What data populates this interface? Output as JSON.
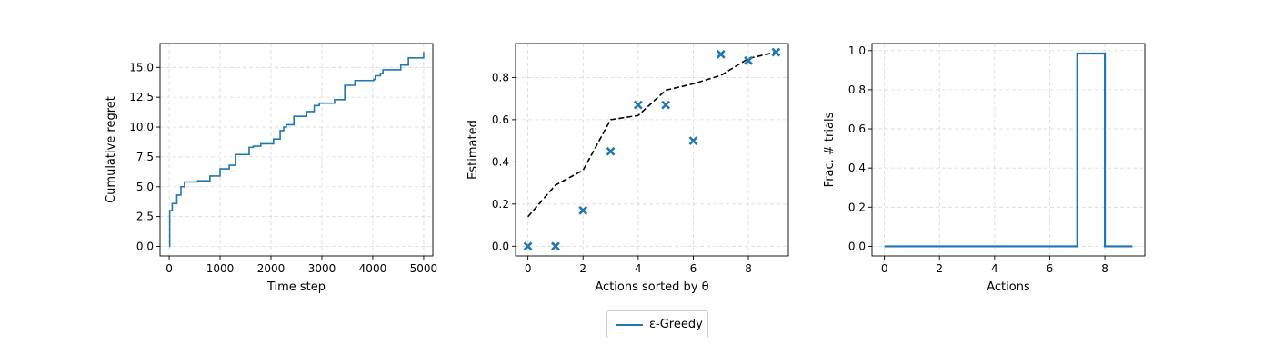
{
  "chart_data": [
    {
      "type": "line",
      "title": "",
      "xlabel": "Time step",
      "ylabel": "Cumulative regret",
      "xlim": [
        -180,
        5180
      ],
      "ylim": [
        -0.8,
        17
      ],
      "xticks": [
        0,
        1000,
        2000,
        3000,
        4000,
        5000
      ],
      "yticks": [
        0.0,
        2.5,
        5.0,
        7.5,
        10.0,
        12.5,
        15.0
      ],
      "xtick_labels": [
        "0",
        "1000",
        "2000",
        "3000",
        "4000",
        "5000"
      ],
      "ytick_labels": [
        "0.0",
        "2.5",
        "5.0",
        "7.5",
        "10.0",
        "12.5",
        "15.0"
      ],
      "grid": true,
      "series": [
        {
          "name": "ε-Greedy",
          "color": "#1f77b4",
          "step": true,
          "x": [
            0,
            10,
            60,
            150,
            230,
            300,
            560,
            800,
            1000,
            1180,
            1300,
            1340,
            1570,
            1650,
            1800,
            2050,
            2180,
            2250,
            2300,
            2450,
            2700,
            2850,
            2950,
            3100,
            3250,
            3450,
            3550,
            3650,
            3800,
            4020,
            4050,
            4150,
            4200,
            4500,
            4550,
            4700,
            4800,
            4950,
            5000
          ],
          "y": [
            0.0,
            3.0,
            3.6,
            4.3,
            5.0,
            5.4,
            5.5,
            5.9,
            6.5,
            6.8,
            7.7,
            7.7,
            8.3,
            8.4,
            8.6,
            9.0,
            9.7,
            10.0,
            10.2,
            10.9,
            11.3,
            11.8,
            12.0,
            12.0,
            12.3,
            13.5,
            13.5,
            13.9,
            13.9,
            14.0,
            14.3,
            14.5,
            14.8,
            14.8,
            15.2,
            15.8,
            15.8,
            15.8,
            16.3
          ]
        }
      ]
    },
    {
      "type": "scatter",
      "title": "",
      "xlabel": "Actions sorted by θ",
      "ylabel": "Estimated",
      "xlim": [
        -0.45,
        9.45
      ],
      "ylim": [
        -0.046,
        0.961
      ],
      "xticks": [
        0,
        2,
        4,
        6,
        8
      ],
      "yticks": [
        0.0,
        0.2,
        0.4,
        0.6,
        0.8
      ],
      "xtick_labels": [
        "0",
        "2",
        "4",
        "6",
        "8"
      ],
      "ytick_labels": [
        "0.0",
        "0.2",
        "0.4",
        "0.6",
        "0.8"
      ],
      "grid": true,
      "series": [
        {
          "name": "",
          "kind": "line",
          "style": "dashed",
          "color": "#000000",
          "x": [
            0,
            1,
            2,
            3,
            4,
            5,
            6,
            7,
            8,
            9
          ],
          "y": [
            0.14,
            0.29,
            0.36,
            0.6,
            0.62,
            0.74,
            0.77,
            0.81,
            0.89,
            0.92
          ]
        },
        {
          "name": "",
          "kind": "scatter",
          "marker": "x",
          "color": "#1f77b4",
          "x": [
            0,
            1,
            2,
            3,
            4,
            5,
            6,
            7,
            8,
            9
          ],
          "y": [
            0.0,
            0.0,
            0.17,
            0.45,
            0.67,
            0.67,
            0.5,
            0.91,
            0.88,
            0.92
          ]
        }
      ]
    },
    {
      "type": "line",
      "title": "",
      "xlabel": "Actions",
      "ylabel": "Frac. # trials",
      "xlim": [
        -0.45,
        9.45
      ],
      "ylim": [
        -0.049,
        1.036
      ],
      "xticks": [
        0,
        2,
        4,
        6,
        8
      ],
      "yticks": [
        0.0,
        0.2,
        0.4,
        0.6,
        0.8,
        1.0
      ],
      "xtick_labels": [
        "0",
        "2",
        "4",
        "6",
        "8"
      ],
      "ytick_labels": [
        "0.0",
        "0.2",
        "0.4",
        "0.6",
        "0.8",
        "1.0"
      ],
      "grid": true,
      "series": [
        {
          "name": "",
          "color": "#1f77b4",
          "step": true,
          "x": [
            0,
            1,
            2,
            3,
            4,
            5,
            6,
            7,
            8,
            9
          ],
          "y": [
            0.0,
            0.0,
            0.0,
            0.0,
            0.0,
            0.0,
            0.0,
            0.985,
            0.0,
            0.0
          ]
        }
      ]
    }
  ],
  "legend": {
    "label": "ε-Greedy",
    "color": "#1f77b4",
    "placement": "bottom-center"
  }
}
